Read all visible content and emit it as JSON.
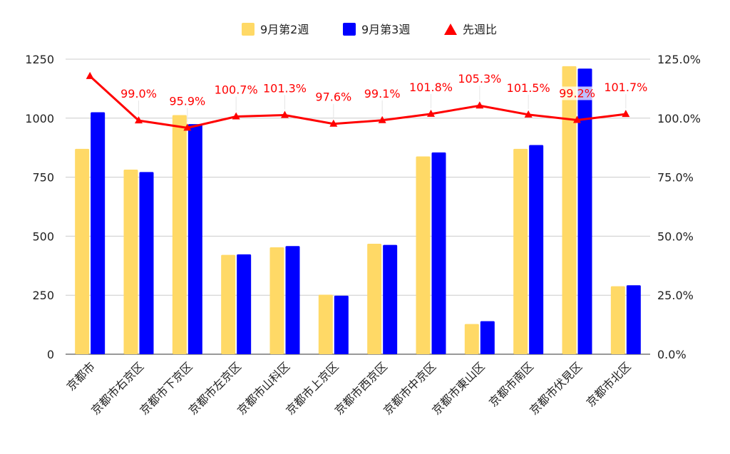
{
  "chart_data": {
    "type": "bar",
    "categories": [
      "京都市",
      "京都市右京区",
      "京都市下京区",
      "京都市左京区",
      "京都市山科区",
      "京都市上京区",
      "京都市西京区",
      "京都市中京区",
      "京都市東山区",
      "京都市南区",
      "京都市伏見区",
      "京都市北区"
    ],
    "series": [
      {
        "name": "9月第2週",
        "type": "bar",
        "axis": "left",
        "color": "#ffd966",
        "values": [
          870,
          782,
          1013,
          421,
          453,
          252,
          468,
          838,
          128,
          870,
          1220,
          288
        ]
      },
      {
        "name": "9月第3週",
        "type": "bar",
        "axis": "left",
        "color": "#0000ff",
        "values": [
          1025,
          772,
          975,
          423,
          458,
          248,
          463,
          855,
          140,
          886,
          1210,
          292
        ]
      },
      {
        "name": "先週比",
        "type": "line",
        "axis": "right",
        "color": "#ff0000",
        "marker": "triangle",
        "values": [
          117.8,
          99.0,
          95.9,
          100.7,
          101.3,
          97.6,
          99.1,
          101.8,
          105.3,
          101.5,
          99.2,
          101.7
        ],
        "labels": [
          "",
          "99.0%",
          "95.9%",
          "100.7%",
          "101.3%",
          "97.6%",
          "99.1%",
          "101.8%",
          "105.3%",
          "101.5%",
          "99.2%",
          "101.7%"
        ]
      }
    ],
    "y_left": {
      "min": 0,
      "max": 1250,
      "ticks": [
        "0",
        "250",
        "500",
        "750",
        "1000",
        "1250"
      ],
      "tick_values": [
        0,
        250,
        500,
        750,
        1000,
        1250
      ]
    },
    "y_right": {
      "min": 0,
      "max": 125,
      "ticks": [
        "0.0%",
        "25.0%",
        "50.0%",
        "75.0%",
        "100.0%",
        "125.0%"
      ],
      "tick_values": [
        0,
        25,
        50,
        75,
        100,
        125
      ]
    },
    "grid": true,
    "legend_position": "top-center"
  }
}
